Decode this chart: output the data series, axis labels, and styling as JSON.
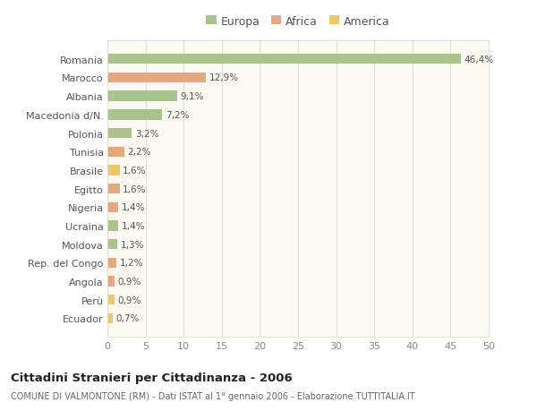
{
  "categories": [
    "Romania",
    "Marocco",
    "Albania",
    "Macedonia d/N.",
    "Polonia",
    "Tunisia",
    "Brasile",
    "Egitto",
    "Nigeria",
    "Ucraina",
    "Moldova",
    "Rep. del Congo",
    "Angola",
    "Perù",
    "Ecuador"
  ],
  "values": [
    46.4,
    12.9,
    9.1,
    7.2,
    3.2,
    2.2,
    1.6,
    1.6,
    1.4,
    1.4,
    1.3,
    1.2,
    0.9,
    0.9,
    0.7
  ],
  "labels": [
    "46,4%",
    "12,9%",
    "9,1%",
    "7,2%",
    "3,2%",
    "2,2%",
    "1,6%",
    "1,6%",
    "1,4%",
    "1,4%",
    "1,3%",
    "1,2%",
    "0,9%",
    "0,9%",
    "0,7%"
  ],
  "colors": [
    "#a8c48a",
    "#e8a87c",
    "#a8c48a",
    "#a8c48a",
    "#a8c48a",
    "#e8a87c",
    "#f0c862",
    "#e8a87c",
    "#e8a87c",
    "#a8c48a",
    "#a8c48a",
    "#e8a87c",
    "#e8a87c",
    "#f0c862",
    "#f0c862"
  ],
  "legend_labels": [
    "Europa",
    "Africa",
    "America"
  ],
  "legend_colors": [
    "#a8c48a",
    "#e8a87c",
    "#f0c862"
  ],
  "xlim": [
    0,
    50
  ],
  "xticks": [
    0,
    5,
    10,
    15,
    20,
    25,
    30,
    35,
    40,
    45,
    50
  ],
  "title": "Cittadini Stranieri per Cittadinanza - 2006",
  "subtitle": "COMUNE DI VALMONTONE (RM) - Dati ISTAT al 1° gennaio 2006 - Elaborazione TUTTITALIA.IT",
  "bg_color": "#ffffff",
  "plot_bg_color": "#fafaf2",
  "grid_color": "#e0e0d0",
  "bar_height": 0.55
}
